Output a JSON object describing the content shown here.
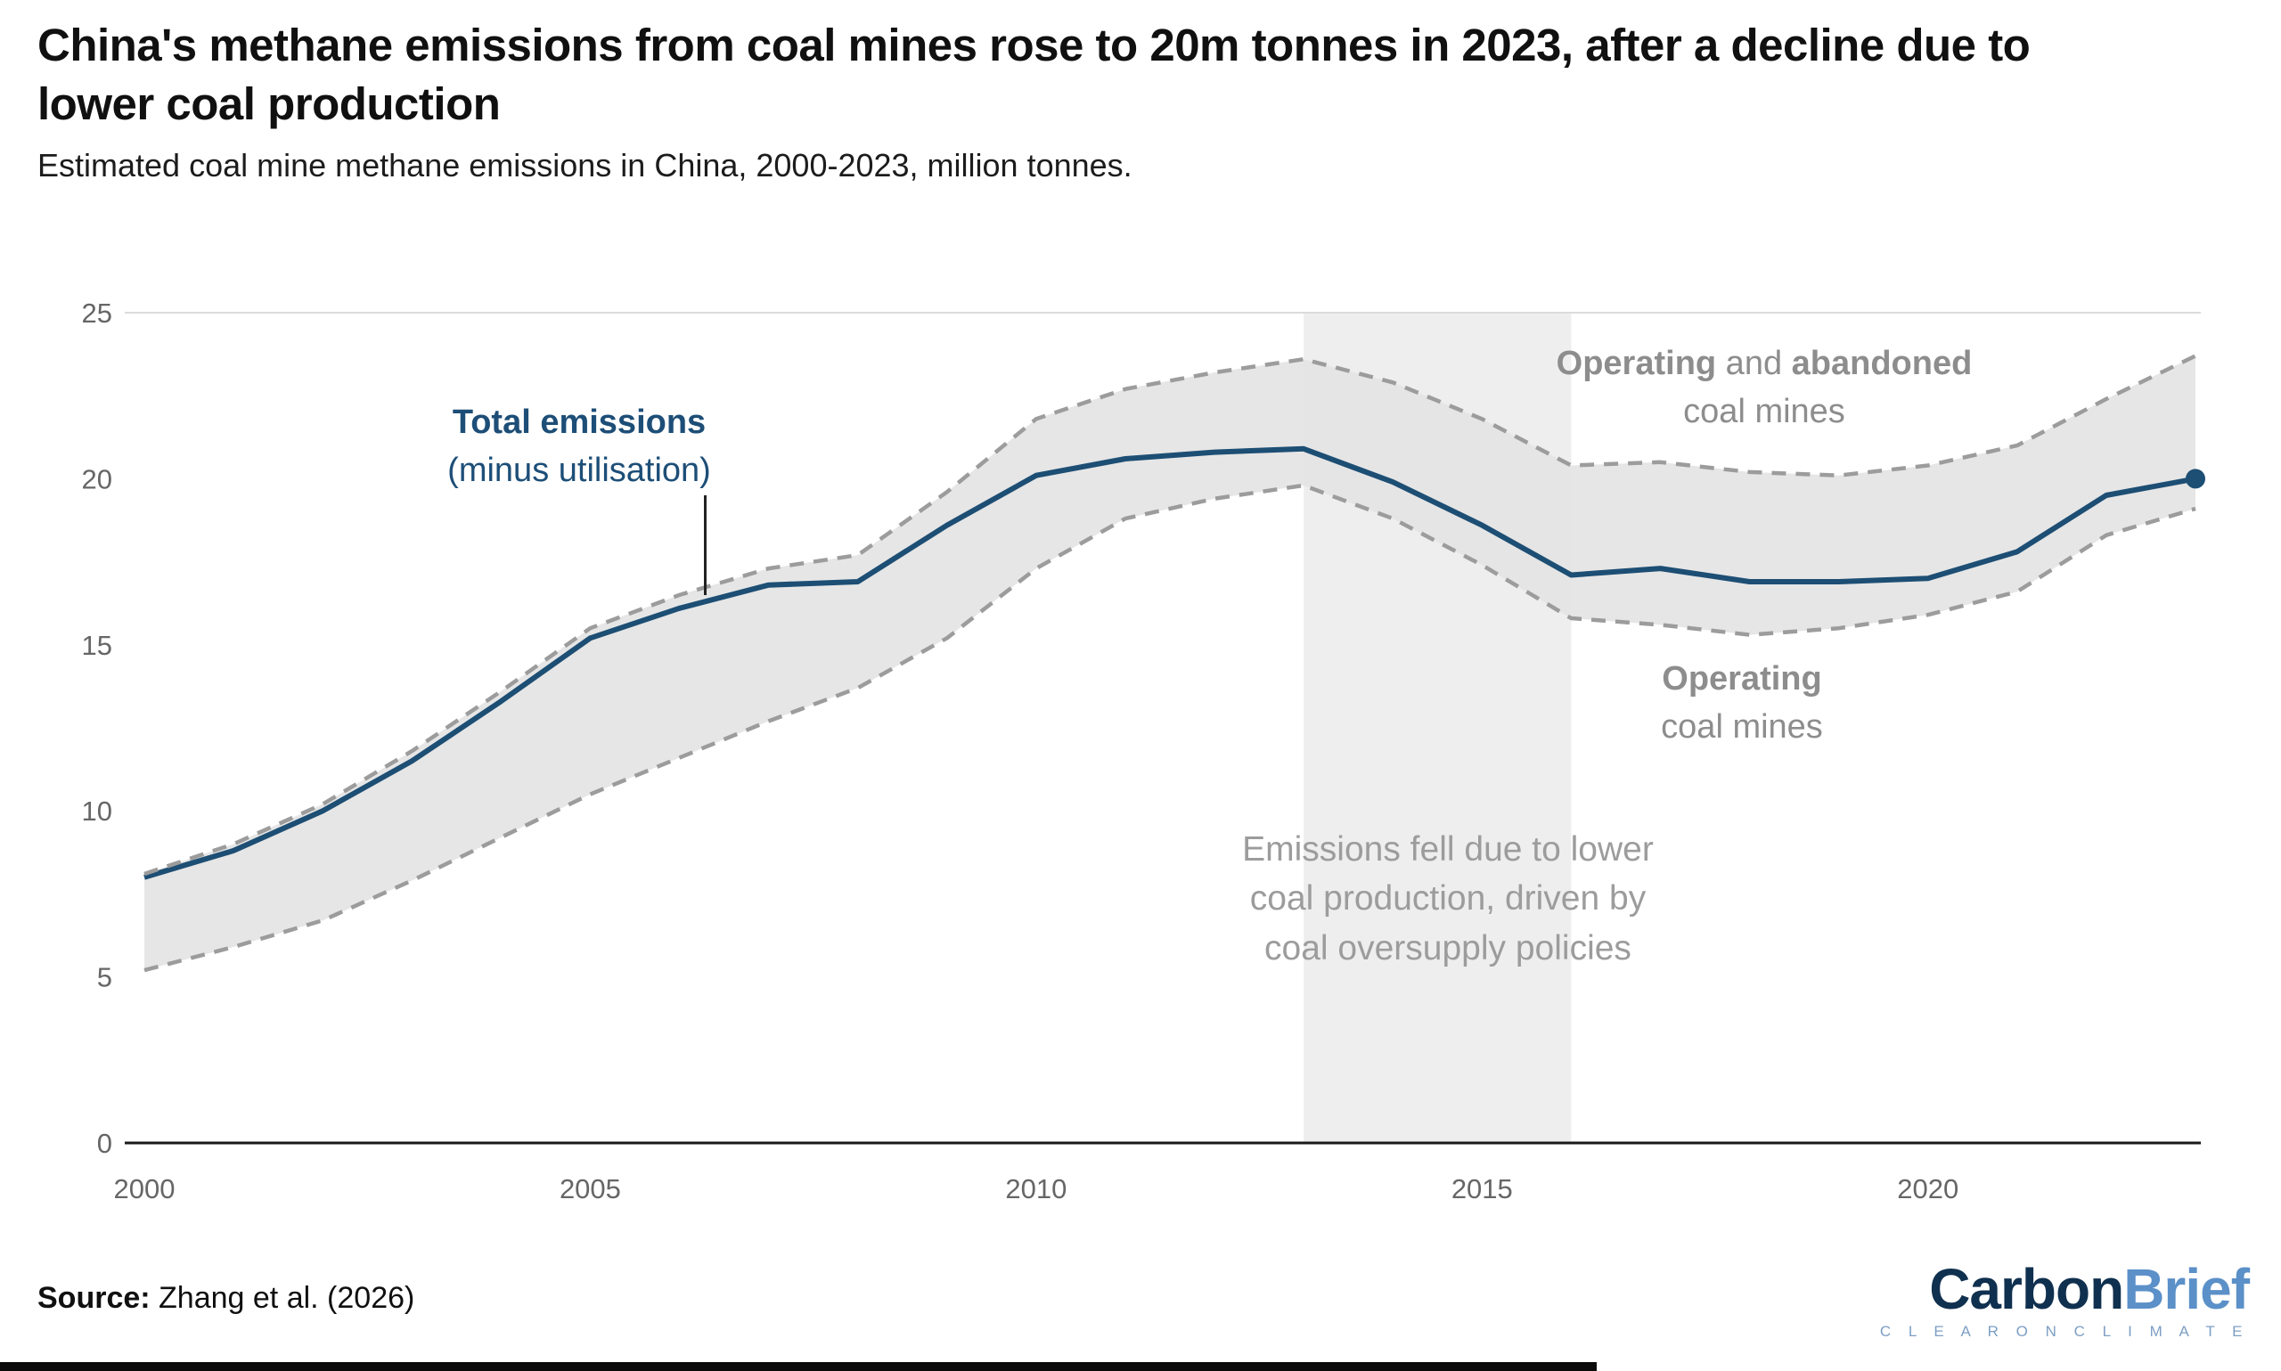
{
  "header": {
    "title": "China's methane emissions from coal mines rose to 20m tonnes in 2023, after a decline due to lower coal production",
    "subtitle": "Estimated coal mine methane emissions in China, 2000-2023, million tonnes."
  },
  "annotations": {
    "total": {
      "line1": "Total emissions",
      "line2": "(minus utilisation)"
    },
    "upper": {
      "bold1": "Operating",
      "mid": " and ",
      "bold2": "abandoned",
      "line2": "coal mines"
    },
    "lower": {
      "bold": "Operating",
      "line2": "coal mines"
    },
    "event": {
      "line1": "Emissions fell due to lower",
      "line2": "coal production, driven by",
      "line3": "coal oversupply policies"
    }
  },
  "footer": {
    "source_label": "Source:",
    "source_text": " Zhang et al. (2026)",
    "logo_part1": "Carbon",
    "logo_part2": "Brief",
    "logo_tagline": "C L E A R   O N   C L I M A T E"
  },
  "colors": {
    "accent_navy": "#1d4e74",
    "dashed_gray": "#9c9c9c",
    "band_fill": "#e3e3e3",
    "region_fill": "#eeeeee",
    "grid": "#dcdcdc",
    "axis": "#1a1a1a",
    "tick_text": "#666666"
  },
  "chart_data": {
    "type": "line",
    "title": "China's methane emissions from coal mines rose to 20m tonnes in 2023, after a decline due to lower coal production",
    "subtitle": "Estimated coal mine methane emissions in China, 2000-2023, million tonnes.",
    "xlabel": "",
    "ylabel": "million tonnes",
    "xlim": [
      2000,
      2023
    ],
    "ylim": [
      0,
      25
    ],
    "yticks": [
      0,
      5,
      10,
      15,
      20,
      25
    ],
    "xticks": [
      2000,
      2005,
      2010,
      2015,
      2020
    ],
    "grid_yticks": [
      25
    ],
    "legend_position": "none",
    "x": [
      2000,
      2001,
      2002,
      2003,
      2004,
      2005,
      2006,
      2007,
      2008,
      2009,
      2010,
      2011,
      2012,
      2013,
      2014,
      2015,
      2016,
      2017,
      2018,
      2019,
      2020,
      2021,
      2022,
      2023
    ],
    "series": [
      {
        "name": "Total emissions (minus utilisation)",
        "style": "solid",
        "end_dot": true,
        "values": [
          8.0,
          8.8,
          10.0,
          11.5,
          13.3,
          15.2,
          16.1,
          16.8,
          16.9,
          18.6,
          20.1,
          20.6,
          20.8,
          20.9,
          19.9,
          18.6,
          17.1,
          17.3,
          16.9,
          16.9,
          17.0,
          17.8,
          19.5,
          20.0
        ]
      },
      {
        "name": "Operating and abandoned coal mines",
        "style": "dashed",
        "end_dot": false,
        "values": [
          8.1,
          9.0,
          10.2,
          11.8,
          13.6,
          15.5,
          16.5,
          17.3,
          17.7,
          19.6,
          21.8,
          22.7,
          23.2,
          23.6,
          22.9,
          21.8,
          20.4,
          20.5,
          20.2,
          20.1,
          20.4,
          21.0,
          22.4,
          23.7
        ]
      },
      {
        "name": "Operating coal mines",
        "style": "dashed",
        "end_dot": false,
        "values": [
          5.2,
          5.9,
          6.7,
          7.9,
          9.2,
          10.5,
          11.6,
          12.7,
          13.7,
          15.2,
          17.3,
          18.8,
          19.4,
          19.8,
          18.8,
          17.4,
          15.8,
          15.6,
          15.3,
          15.5,
          15.9,
          16.6,
          18.3,
          19.1
        ]
      }
    ],
    "band_between_series": [
      1,
      2
    ],
    "highlight_region": {
      "x0": 2013,
      "x1": 2016
    }
  }
}
